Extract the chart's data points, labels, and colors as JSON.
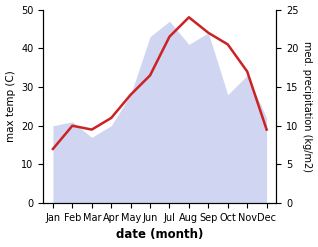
{
  "months": [
    "Jan",
    "Feb",
    "Mar",
    "Apr",
    "May",
    "Jun",
    "Jul",
    "Aug",
    "Sep",
    "Oct",
    "Nov",
    "Dec"
  ],
  "temp_max": [
    14,
    20,
    19,
    22,
    28,
    33,
    43,
    48,
    44,
    41,
    34,
    19
  ],
  "precipitation": [
    20,
    21,
    17,
    20,
    28,
    43,
    47,
    41,
    44,
    28,
    33,
    22
  ],
  "temp_color": "#cc2222",
  "precip_color": "#aab4e8",
  "precip_fill_alpha": 0.55,
  "temp_ylim": [
    0,
    50
  ],
  "precip_ylim": [
    0,
    50
  ],
  "temp_yticks": [
    0,
    10,
    20,
    30,
    40,
    50
  ],
  "precip_yticks": [
    0,
    5,
    10,
    15,
    20,
    25
  ],
  "ylabel_left": "max temp (C)",
  "ylabel_right": "med. precipitation (kg/m2)",
  "xlabel": "date (month)",
  "figsize": [
    3.18,
    2.47
  ],
  "dpi": 100
}
